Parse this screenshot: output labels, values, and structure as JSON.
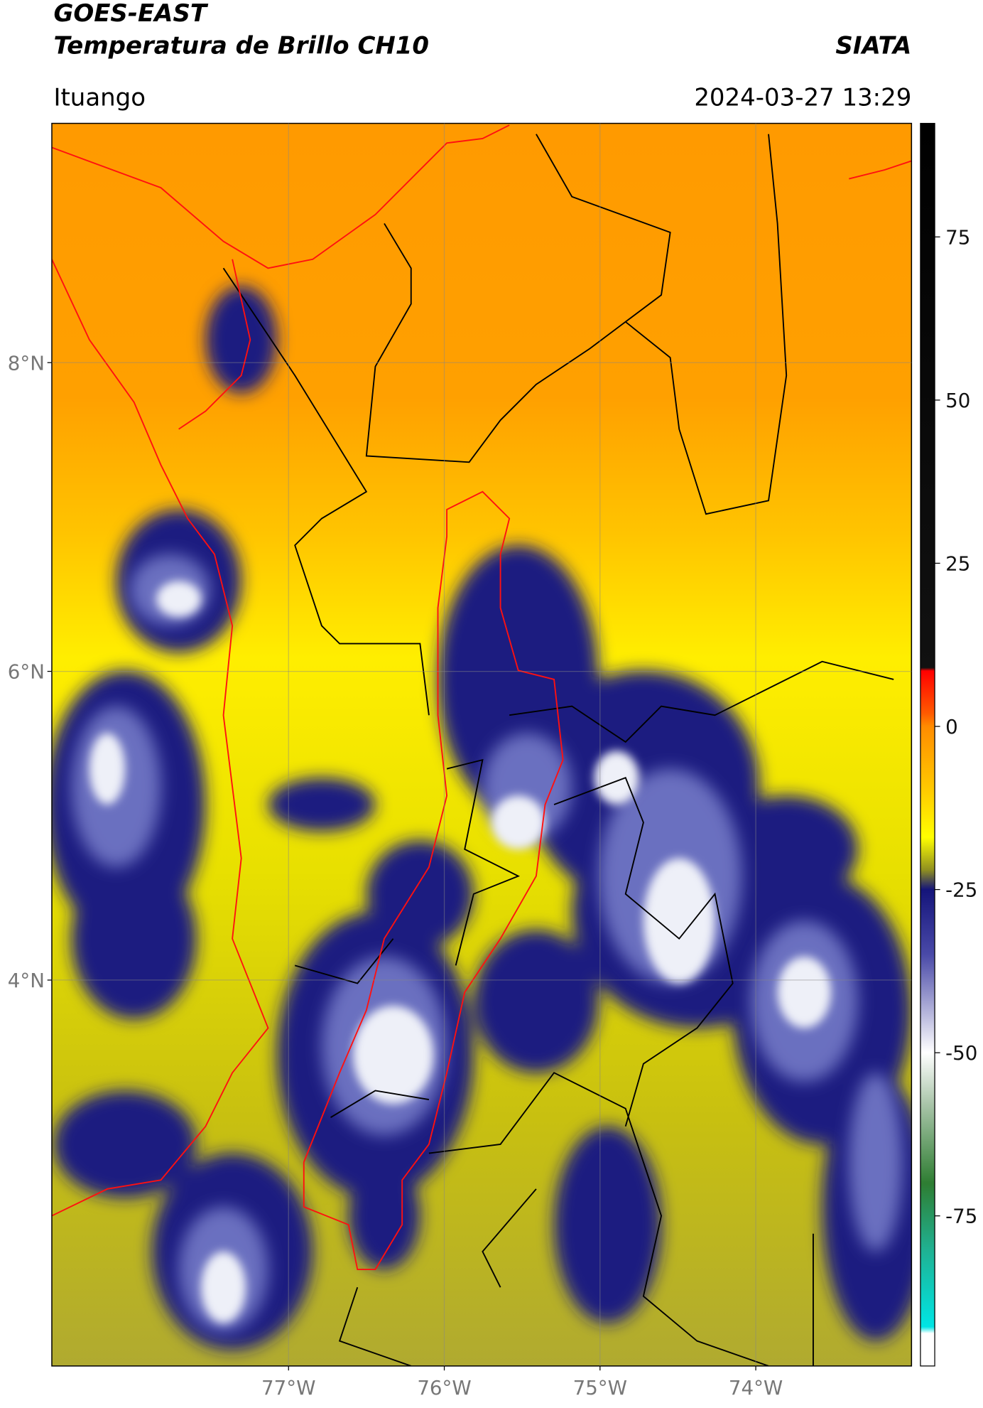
{
  "header": {
    "title": "GOES-EAST",
    "subtitle": "Temperatura de Brillo CH10",
    "source": "SIATA",
    "location": "Ituango",
    "datetime": "2024-03-27 13:29"
  },
  "map": {
    "xlim": [
      -78.52,
      -73.0
    ],
    "ylim": [
      1.5,
      9.55
    ],
    "xticks": [
      {
        "value": -77,
        "label": "77°W"
      },
      {
        "value": -76,
        "label": "76°W"
      },
      {
        "value": -75,
        "label": "75°W"
      },
      {
        "value": -74,
        "label": "74°W"
      }
    ],
    "yticks": [
      {
        "value": 8,
        "label": "8°N"
      },
      {
        "value": 6,
        "label": "6°N"
      },
      {
        "value": 4,
        "label": "4°N"
      }
    ],
    "grid": true
  },
  "colorbar": {
    "clim": [
      -98,
      92.4
    ],
    "ticks": [
      75,
      50,
      25,
      0,
      -25,
      -50,
      -75
    ],
    "colormap": [
      [
        92.4,
        "#000000"
      ],
      [
        9,
        "#111111"
      ],
      [
        8.5,
        "#ff0000"
      ],
      [
        2,
        "#ff5a00"
      ],
      [
        0,
        "#ff8c00"
      ],
      [
        -10,
        "#ffcc00"
      ],
      [
        -17,
        "#ffff00"
      ],
      [
        -22,
        "#8f8f20"
      ],
      [
        -25,
        "#14147a"
      ],
      [
        -35,
        "#4a4aa8"
      ],
      [
        -50,
        "#ffffff"
      ],
      [
        -58,
        "#a8c4a8"
      ],
      [
        -70,
        "#2e7d32"
      ],
      [
        -80,
        "#20b090"
      ],
      [
        -92,
        "#00e5e5"
      ],
      [
        -93,
        "#ffffff"
      ],
      [
        -98,
        "#ffffff"
      ]
    ]
  }
}
